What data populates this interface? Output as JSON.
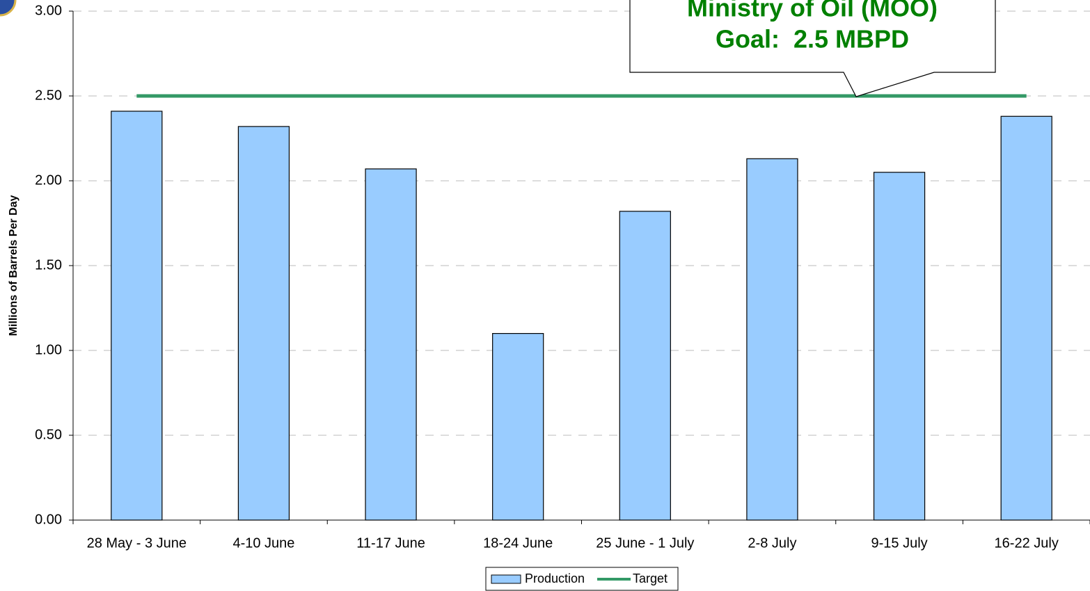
{
  "chart_data": {
    "type": "bar",
    "y_label": "Millions of Barrels Per Day",
    "annotation": [
      "Ministry of Oil (MOO)",
      "Goal:  2.5 MBPD"
    ],
    "categories": [
      "28 May - 3 June",
      "4-10 June",
      "11-17 June",
      "18-24 June",
      "25 June - 1 July",
      "2-8 July",
      "9-15 July",
      "16-22 July"
    ],
    "series": [
      {
        "name": "Production",
        "type": "bar",
        "color": "#99ccff",
        "values": [
          2.41,
          2.32,
          2.07,
          1.1,
          1.82,
          2.13,
          2.05,
          2.38
        ]
      },
      {
        "name": "Target",
        "type": "line",
        "color": "#339966",
        "values": [
          2.5,
          2.5,
          2.5,
          2.5,
          2.5,
          2.5,
          2.5,
          2.5
        ]
      }
    ],
    "ylim": [
      0,
      3
    ],
    "yticks": [
      {
        "value": 0,
        "label": "0.00"
      },
      {
        "value": 0.5,
        "label": "0.50"
      },
      {
        "value": 1,
        "label": "1.00"
      },
      {
        "value": 1.5,
        "label": "1.50"
      },
      {
        "value": 2,
        "label": "2.00"
      },
      {
        "value": 2.5,
        "label": "2.50"
      },
      {
        "value": 3,
        "label": "3.00"
      }
    ],
    "grid": true,
    "legend": "bottom"
  }
}
